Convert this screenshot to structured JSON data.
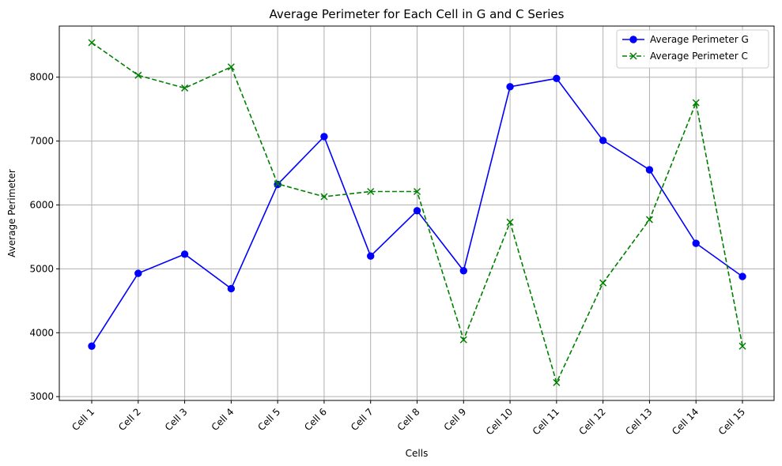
{
  "chart_data": {
    "type": "line",
    "title": "Average Perimeter for Each Cell in G and C Series",
    "xlabel": "Cells",
    "ylabel": "Average Perimeter",
    "categories": [
      "Cell 1",
      "Cell 2",
      "Cell 3",
      "Cell 4",
      "Cell 5",
      "Cell 6",
      "Cell 7",
      "Cell 8",
      "Cell 9",
      "Cell 10",
      "Cell 11",
      "Cell 12",
      "Cell 13",
      "Cell 14",
      "Cell 15"
    ],
    "ylim": [
      2940,
      8800
    ],
    "yticks": [
      3000,
      4000,
      5000,
      6000,
      7000,
      8000
    ],
    "grid": true,
    "legend_position": "top-right",
    "series": [
      {
        "name": "Average Perimeter G",
        "color": "#0000ff",
        "marker": "circle",
        "line_style": "solid",
        "values": [
          3790,
          4930,
          5230,
          4690,
          6320,
          7070,
          5200,
          5910,
          4970,
          7850,
          7980,
          7010,
          6550,
          5400,
          4880
        ]
      },
      {
        "name": "Average Perimeter C",
        "color": "#008000",
        "marker": "x",
        "line_style": "dashed",
        "values": [
          8540,
          8030,
          7830,
          8160,
          6330,
          6130,
          6210,
          6210,
          3890,
          5730,
          3220,
          4780,
          5770,
          7600,
          3790
        ]
      }
    ]
  }
}
